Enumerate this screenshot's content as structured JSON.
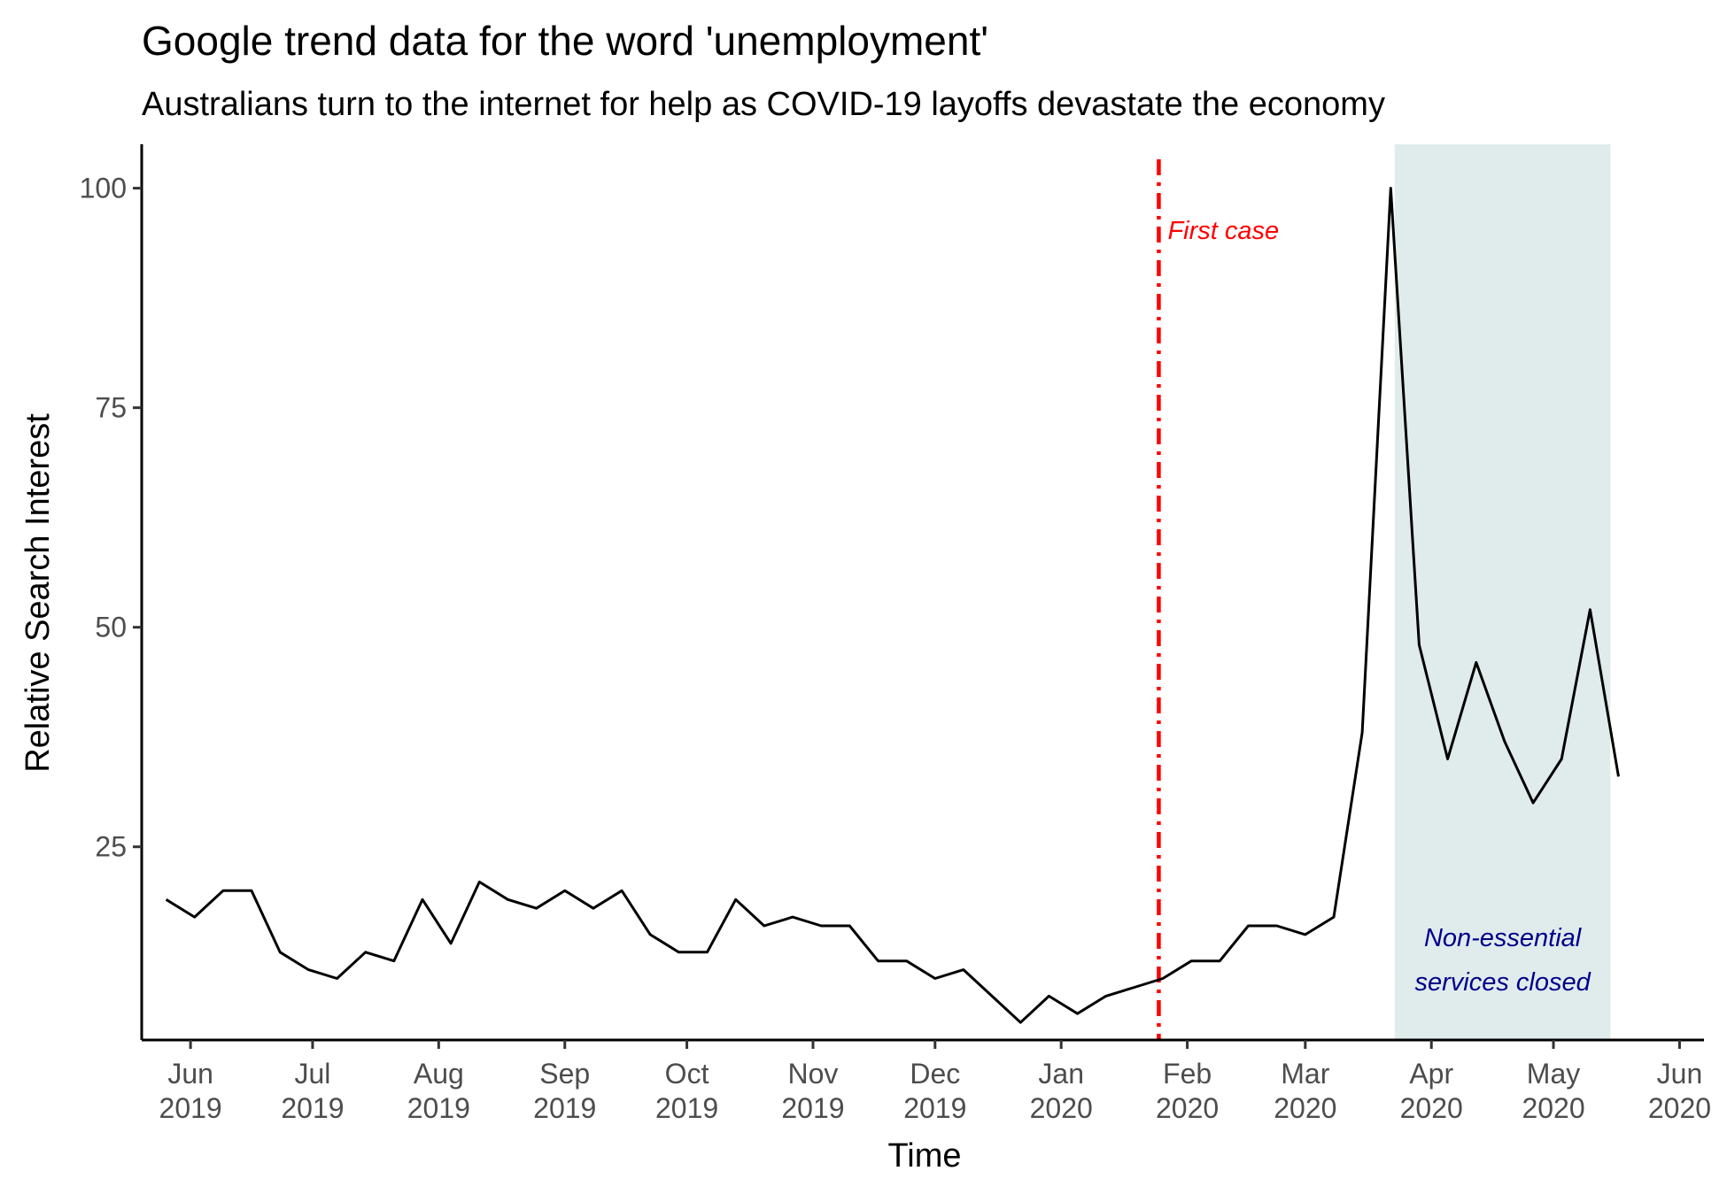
{
  "chart_data": {
    "type": "line",
    "title": "Google trend data for the word 'unemployment'",
    "subtitle": "Australians turn to the internet for help as COVID-19 layoffs devastate the economy",
    "xlabel": "Time",
    "ylabel": "Relative Search Interest",
    "xlim": [
      "2019-05-20",
      "2020-06-07"
    ],
    "ylim": [
      3,
      105
    ],
    "y_ticks": [
      25,
      50,
      75,
      100
    ],
    "x_ticks": [
      {
        "date": "2019-06-01",
        "label": "Jun\n2019"
      },
      {
        "date": "2019-07-01",
        "label": "Jul\n2019"
      },
      {
        "date": "2019-08-01",
        "label": "Aug\n2019"
      },
      {
        "date": "2019-09-01",
        "label": "Sep\n2019"
      },
      {
        "date": "2019-10-01",
        "label": "Oct\n2019"
      },
      {
        "date": "2019-11-01",
        "label": "Nov\n2019"
      },
      {
        "date": "2019-12-01",
        "label": "Dec\n2019"
      },
      {
        "date": "2020-01-01",
        "label": "Jan\n2020"
      },
      {
        "date": "2020-02-01",
        "label": "Feb\n2020"
      },
      {
        "date": "2020-03-01",
        "label": "Mar\n2020"
      },
      {
        "date": "2020-04-01",
        "label": "Apr\n2020"
      },
      {
        "date": "2020-05-01",
        "label": "May\n2020"
      },
      {
        "date": "2020-06-01",
        "label": "Jun\n2020"
      }
    ],
    "grid": false,
    "legend": "none",
    "line_color": "#000000",
    "series": [
      {
        "x": [
          "2019-05-26",
          "2019-06-02",
          "2019-06-09",
          "2019-06-16",
          "2019-06-23",
          "2019-06-30",
          "2019-07-07",
          "2019-07-14",
          "2019-07-21",
          "2019-07-28",
          "2019-08-04",
          "2019-08-11",
          "2019-08-18",
          "2019-08-25",
          "2019-09-01",
          "2019-09-08",
          "2019-09-15",
          "2019-09-22",
          "2019-09-29",
          "2019-10-06",
          "2019-10-13",
          "2019-10-20",
          "2019-10-27",
          "2019-11-03",
          "2019-11-10",
          "2019-11-17",
          "2019-11-24",
          "2019-12-01",
          "2019-12-08",
          "2019-12-15",
          "2019-12-22",
          "2019-12-29",
          "2020-01-05",
          "2020-01-12",
          "2020-01-19",
          "2020-01-26",
          "2020-02-02",
          "2020-02-09",
          "2020-02-16",
          "2020-02-23",
          "2020-03-01",
          "2020-03-08",
          "2020-03-15",
          "2020-03-22",
          "2020-03-29",
          "2020-04-05",
          "2020-04-12",
          "2020-04-19",
          "2020-04-26",
          "2020-05-03",
          "2020-05-10",
          "2020-05-17"
        ],
        "values": [
          19,
          17,
          20,
          20,
          13,
          11,
          10,
          13,
          12,
          19,
          14,
          21,
          19,
          18,
          20,
          18,
          20,
          15,
          13,
          13,
          19,
          16,
          17,
          16,
          16,
          12,
          12,
          10,
          11,
          8,
          5,
          8,
          6,
          8,
          9,
          10,
          12,
          12,
          16,
          16,
          15,
          17,
          38,
          100,
          48,
          35,
          46,
          37,
          30,
          35,
          52,
          33
        ]
      }
    ],
    "annotations": [
      {
        "type": "vline",
        "x": "2020-01-25",
        "color": "#ff0000",
        "linestyle": "dashdot",
        "label": "First case"
      },
      {
        "type": "shaded-region",
        "x_start": "2020-03-23",
        "x_end": "2020-05-15",
        "fill": "#dfeceb",
        "label_lines": [
          "Non-essential",
          "services closed"
        ],
        "label_color": "#00008b"
      }
    ]
  }
}
